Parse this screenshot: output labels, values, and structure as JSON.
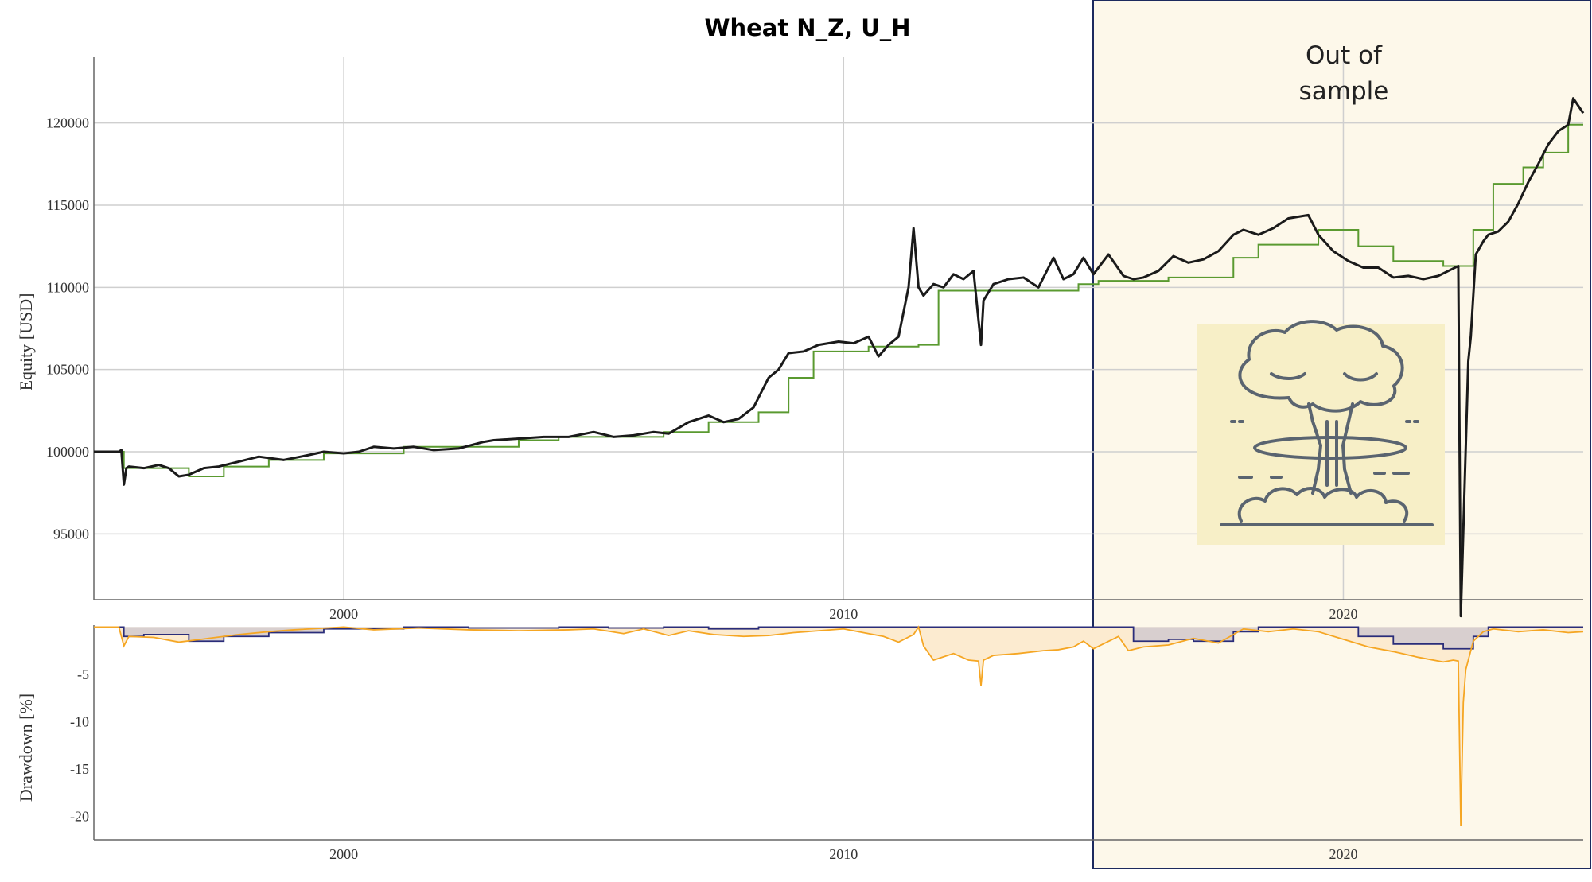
{
  "chart_data": [
    {
      "type": "line",
      "title": "Wheat N_Z, U_H",
      "ylabel": "Equity [USD]",
      "xlabel": "",
      "x_range": [
        1995.0,
        2024.8
      ],
      "ylim": [
        91000,
        124000
      ],
      "x_ticks": [
        2000,
        2010,
        2020
      ],
      "x_tick_labels": [
        "2000",
        "2010",
        "2020"
      ],
      "y_ticks": [
        95000,
        100000,
        105000,
        110000,
        115000,
        120000
      ],
      "y_tick_labels": [
        "95000",
        "100000",
        "105000",
        "110000",
        "115000",
        "120000"
      ],
      "grid": true,
      "series": [
        {
          "color": "#1a1a1a",
          "style": "equity",
          "x": [
            1995.0,
            1995.5,
            1995.55,
            1995.6,
            1995.65,
            1995.7,
            1996.0,
            1996.3,
            1996.5,
            1996.7,
            1996.9,
            1997.2,
            1997.5,
            1997.9,
            1998.3,
            1998.8,
            1999.3,
            1999.6,
            2000.0,
            2000.3,
            2000.6,
            2001.0,
            2001.4,
            2001.8,
            2002.3,
            2002.8,
            2003.0,
            2003.5,
            2004.0,
            2004.5,
            2005.0,
            2005.4,
            2005.8,
            2006.2,
            2006.5,
            2006.9,
            2007.3,
            2007.6,
            2007.9,
            2008.2,
            2008.5,
            2008.7,
            2008.9,
            2009.2,
            2009.5,
            2009.9,
            2010.2,
            2010.5,
            2010.7,
            2010.9,
            2011.1,
            2011.3,
            2011.4,
            2011.5,
            2011.6,
            2011.8,
            2012.0,
            2012.2,
            2012.4,
            2012.6,
            2012.7,
            2012.75,
            2012.8,
            2013.0,
            2013.3,
            2013.6,
            2013.9,
            2014.2,
            2014.4,
            2014.6,
            2014.8,
            2015.0,
            2015.3,
            2015.6,
            2015.8,
            2016.0,
            2016.3,
            2016.6,
            2016.9,
            2017.2,
            2017.5,
            2017.8,
            2018.0,
            2018.3,
            2018.6,
            2018.9,
            2019.3,
            2019.5,
            2019.8,
            2020.1,
            2020.4,
            2020.7,
            2021.0,
            2021.3,
            2021.6,
            2021.9,
            2022.1,
            2022.3,
            2022.35,
            2022.5,
            2022.55,
            2022.65,
            2022.8,
            2022.9,
            2023.1,
            2023.3,
            2023.5,
            2023.7,
            2023.9,
            2024.1,
            2024.3,
            2024.5,
            2024.6,
            2024.8
          ],
          "values": [
            100000,
            100000,
            100100,
            98000,
            99000,
            99100,
            99000,
            99200,
            99000,
            98500,
            98600,
            99000,
            99100,
            99400,
            99700,
            99500,
            99800,
            100000,
            99900,
            100000,
            100300,
            100200,
            100300,
            100100,
            100200,
            100600,
            100700,
            100800,
            100900,
            100900,
            101200,
            100900,
            101000,
            101200,
            101100,
            101800,
            102200,
            101800,
            102000,
            102700,
            104500,
            105000,
            106000,
            106100,
            106500,
            106700,
            106600,
            107000,
            105800,
            106500,
            107000,
            110000,
            113600,
            110000,
            109500,
            110200,
            110000,
            110800,
            110500,
            111000,
            108000,
            106500,
            109200,
            110200,
            110500,
            110600,
            110000,
            111800,
            110500,
            110800,
            111800,
            110800,
            112000,
            110700,
            110500,
            110600,
            111000,
            111900,
            111500,
            111700,
            112200,
            113200,
            113500,
            113200,
            113600,
            114200,
            114400,
            113200,
            112200,
            111600,
            111200,
            111200,
            110600,
            110700,
            110500,
            110700,
            111000,
            111300,
            90000,
            105500,
            107000,
            112000,
            112800,
            113200,
            113400,
            114000,
            115100,
            116400,
            117500,
            118700,
            119500,
            119900,
            121500,
            120600
          ]
        },
        {
          "color": "#5a9a30",
          "style": "step",
          "x": [
            1995.0,
            1995.6,
            1996.9,
            1997.6,
            1998.5,
            1999.6,
            2000.3,
            2001.2,
            2002.5,
            2003.5,
            2004.3,
            2005.3,
            2006.4,
            2007.3,
            2008.3,
            2008.9,
            2009.4,
            2010.5,
            2011.5,
            2011.9,
            2014.7,
            2015.1,
            2016.5,
            2017.8,
            2018.3,
            2019.5,
            2020.3,
            2021.0,
            2022.0,
            2022.3,
            2022.6,
            2023.0,
            2023.6,
            2024.0,
            2024.5,
            2024.8
          ],
          "values": [
            100000,
            99000,
            98500,
            99100,
            99500,
            99900,
            99900,
            100300,
            100300,
            100700,
            100900,
            100900,
            101200,
            101800,
            102400,
            104500,
            106100,
            106400,
            106500,
            109800,
            110200,
            110400,
            110600,
            111800,
            112600,
            113500,
            112500,
            111600,
            111300,
            111300,
            113500,
            116300,
            117300,
            118200,
            119900,
            119900
          ]
        }
      ],
      "annotations": [
        {
          "text_lines": [
            "Out of",
            "sample"
          ],
          "kind": "shaded-region",
          "x_start": 2014.9,
          "x_end": 2024.8,
          "color": "#fdf8ea"
        }
      ]
    },
    {
      "type": "area",
      "ylabel": "Drawdown [%]",
      "xlabel": "",
      "x_range": [
        1995.0,
        2024.8
      ],
      "ylim": [
        -22.5,
        0.2
      ],
      "x_ticks": [
        2000,
        2010,
        2020
      ],
      "x_tick_labels": [
        "2000",
        "2010",
        "2020"
      ],
      "y_ticks": [
        -5,
        -10,
        -15,
        -20
      ],
      "y_tick_labels": [
        "-5",
        "-10",
        "-15",
        "-20"
      ],
      "grid": false,
      "series": [
        {
          "color": "#f5a623",
          "style": "drawdown-equity",
          "x": [
            1995.0,
            1995.5,
            1995.6,
            1995.7,
            1996.2,
            1996.7,
            1997.3,
            1997.9,
            1998.5,
            1999.0,
            2000.0,
            2000.6,
            2001.5,
            2002.5,
            2003.5,
            2004.5,
            2005.0,
            2005.6,
            2006.0,
            2006.5,
            2006.9,
            2007.4,
            2008.0,
            2008.5,
            2009.0,
            2010.0,
            2010.5,
            2010.8,
            2011.1,
            2011.4,
            2011.5,
            2011.6,
            2011.8,
            2012.2,
            2012.5,
            2012.7,
            2012.75,
            2012.8,
            2013.0,
            2013.5,
            2014.0,
            2014.3,
            2014.6,
            2014.8,
            2015.0,
            2015.5,
            2015.7,
            2016.0,
            2016.5,
            2017.0,
            2017.5,
            2018.0,
            2018.5,
            2019.0,
            2019.5,
            2020.0,
            2020.5,
            2021.0,
            2021.5,
            2022.0,
            2022.2,
            2022.3,
            2022.35,
            2022.4,
            2022.45,
            2022.5,
            2022.6,
            2022.8,
            2023.0,
            2023.5,
            2024.0,
            2024.5,
            2024.8
          ],
          "values": [
            0,
            0,
            -2.0,
            -1.0,
            -1.1,
            -1.6,
            -1.2,
            -0.8,
            -0.5,
            -0.3,
            0,
            -0.3,
            -0.1,
            -0.3,
            -0.4,
            -0.3,
            -0.2,
            -0.7,
            -0.2,
            -0.9,
            -0.4,
            -0.8,
            -1.0,
            -0.9,
            -0.6,
            -0.2,
            -0.7,
            -1.0,
            -1.6,
            -0.8,
            0,
            -2.0,
            -3.5,
            -2.8,
            -3.5,
            -3.6,
            -6.2,
            -3.5,
            -3.0,
            -2.8,
            -2.5,
            -2.4,
            -2.1,
            -1.5,
            -2.3,
            -1.0,
            -2.5,
            -2.1,
            -1.9,
            -1.2,
            -1.7,
            -0.2,
            -0.5,
            -0.2,
            -0.5,
            -1.3,
            -2.1,
            -2.6,
            -3.2,
            -3.7,
            -3.5,
            -3.6,
            -21.0,
            -8.0,
            -4.5,
            -3.5,
            -1.5,
            -0.5,
            -0.2,
            -0.5,
            -0.3,
            -0.6,
            -0.5
          ]
        },
        {
          "color": "#2a2d7a",
          "style": "drawdown-step",
          "x": [
            1995.0,
            1995.6,
            1996.0,
            1996.9,
            1997.6,
            1998.5,
            1999.6,
            2000.3,
            2001.2,
            2002.5,
            2003.5,
            2004.3,
            2005.3,
            2006.4,
            2007.3,
            2008.3,
            2008.9,
            2009.4,
            2010.5,
            2011.5,
            2011.9,
            2015.0,
            2015.8,
            2016.5,
            2017.0,
            2017.8,
            2018.3,
            2019.5,
            2020.3,
            2021.0,
            2022.0,
            2022.3,
            2022.6,
            2022.9,
            2024.8
          ],
          "values": [
            0,
            -1.0,
            -0.8,
            -1.5,
            -1.0,
            -0.6,
            -0.2,
            -0.2,
            0,
            -0.1,
            -0.1,
            0,
            -0.1,
            0,
            -0.2,
            0,
            0,
            0,
            0,
            0,
            0,
            0,
            -1.5,
            -1.3,
            -1.5,
            -0.5,
            0,
            0,
            -1.0,
            -1.8,
            -2.3,
            -2.3,
            -1.0,
            0,
            0
          ]
        }
      ],
      "annotations": [
        {
          "kind": "shaded-region",
          "x_start": 2014.9,
          "x_end": 2024.8,
          "color": "#fdf8ea"
        }
      ]
    }
  ],
  "icons": {
    "explosion_image": "mushroom-cloud-icon",
    "explosion_bg": "#f7efc7",
    "explosion_stroke": "#5a6470"
  },
  "colors": {
    "oos_border": "#1c2a5e",
    "dd_fill_top": "#d8cfcf",
    "dd_fill_bottom": "#fcebd0"
  }
}
